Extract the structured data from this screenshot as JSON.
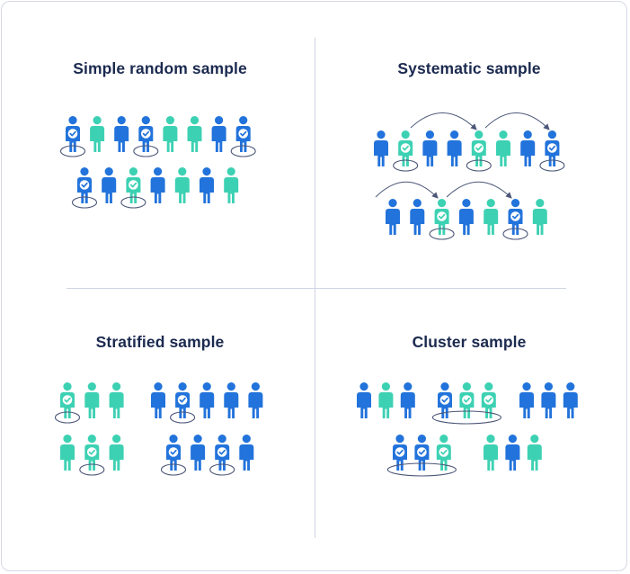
{
  "colors": {
    "blue": "#2273DB",
    "teal": "#3DD1B3",
    "ring": "#4B5678",
    "arrow": "#4B5678",
    "title": "#1B2A4F",
    "divider": "#CDD3E2"
  },
  "icons": {
    "person": "person-icon",
    "check": "check-icon"
  },
  "panels": {
    "simple_random": {
      "title": "Simple random sample",
      "rows": [
        [
          {
            "color": "blue",
            "selected": true
          },
          {
            "color": "teal",
            "selected": false
          },
          {
            "color": "blue",
            "selected": false
          },
          {
            "color": "blue",
            "selected": true
          },
          {
            "color": "teal",
            "selected": false
          },
          {
            "color": "teal",
            "selected": false
          },
          {
            "color": "blue",
            "selected": false
          },
          {
            "color": "blue",
            "selected": true
          }
        ],
        [
          {
            "color": "blue",
            "selected": true
          },
          {
            "color": "blue",
            "selected": false
          },
          {
            "color": "teal",
            "selected": true
          },
          {
            "color": "blue",
            "selected": false
          },
          {
            "color": "teal",
            "selected": false
          },
          {
            "color": "blue",
            "selected": false
          },
          {
            "color": "teal",
            "selected": false
          }
        ]
      ]
    },
    "systematic": {
      "title": "Systematic sample",
      "rows": [
        [
          {
            "color": "blue",
            "selected": false
          },
          {
            "color": "teal",
            "selected": true
          },
          {
            "color": "blue",
            "selected": false
          },
          {
            "color": "blue",
            "selected": false
          },
          {
            "color": "teal",
            "selected": true
          },
          {
            "color": "teal",
            "selected": false
          },
          {
            "color": "blue",
            "selected": false
          },
          {
            "color": "blue",
            "selected": true
          }
        ],
        [
          {
            "color": "blue",
            "selected": false
          },
          {
            "color": "blue",
            "selected": false
          },
          {
            "color": "teal",
            "selected": true
          },
          {
            "color": "blue",
            "selected": false
          },
          {
            "color": "teal",
            "selected": false
          },
          {
            "color": "blue",
            "selected": true
          },
          {
            "color": "teal",
            "selected": false
          }
        ]
      ]
    },
    "stratified": {
      "title": "Stratified sample",
      "groups": [
        [
          {
            "color": "teal",
            "selected": true
          },
          {
            "color": "teal",
            "selected": false
          },
          {
            "color": "teal",
            "selected": false
          }
        ],
        [
          {
            "color": "blue",
            "selected": false
          },
          {
            "color": "blue",
            "selected": true
          },
          {
            "color": "blue",
            "selected": false
          },
          {
            "color": "blue",
            "selected": false
          },
          {
            "color": "blue",
            "selected": false
          }
        ],
        [
          {
            "color": "teal",
            "selected": false
          },
          {
            "color": "teal",
            "selected": true
          },
          {
            "color": "teal",
            "selected": false
          }
        ],
        [
          {
            "color": "blue",
            "selected": true
          },
          {
            "color": "blue",
            "selected": false
          },
          {
            "color": "blue",
            "selected": true
          },
          {
            "color": "blue",
            "selected": false
          }
        ]
      ]
    },
    "cluster": {
      "title": "Cluster sample",
      "groups": [
        {
          "selected": false,
          "members": [
            "blue",
            "teal",
            "blue"
          ]
        },
        {
          "selected": true,
          "members": [
            "blue",
            "teal",
            "teal"
          ]
        },
        {
          "selected": false,
          "members": [
            "blue",
            "blue",
            "blue"
          ]
        },
        {
          "selected": true,
          "members": [
            "blue",
            "blue",
            "teal"
          ]
        },
        {
          "selected": false,
          "members": [
            "teal",
            "blue",
            "teal"
          ]
        }
      ]
    }
  }
}
